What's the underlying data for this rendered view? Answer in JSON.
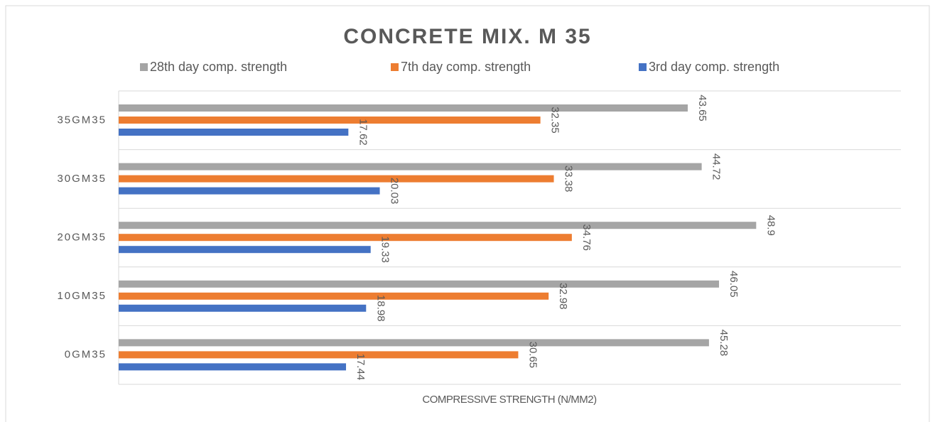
{
  "chart_data": {
    "type": "barh",
    "title": "CONCRETE MIX. M 35",
    "xlabel": "COMPRESSIVE STRENGTH (N/MM2)",
    "categories": [
      "35GM35",
      "30GM35",
      "20GM35",
      "10GM35",
      "0GM35"
    ],
    "series": [
      {
        "name": "28th day comp. strength",
        "color": "#a5a5a5",
        "values": [
          43.65,
          44.72,
          48.9,
          46.05,
          45.28
        ]
      },
      {
        "name": "7th day comp. strength",
        "color": "#ed7d31",
        "values": [
          32.35,
          33.38,
          34.76,
          32.98,
          30.65
        ]
      },
      {
        "name": "3rd day comp. strength",
        "color": "#4472c4",
        "values": [
          17.62,
          20.03,
          19.33,
          18.98,
          17.44
        ]
      }
    ],
    "xlim": [
      0,
      60
    ],
    "legend": "top",
    "grid": true
  }
}
